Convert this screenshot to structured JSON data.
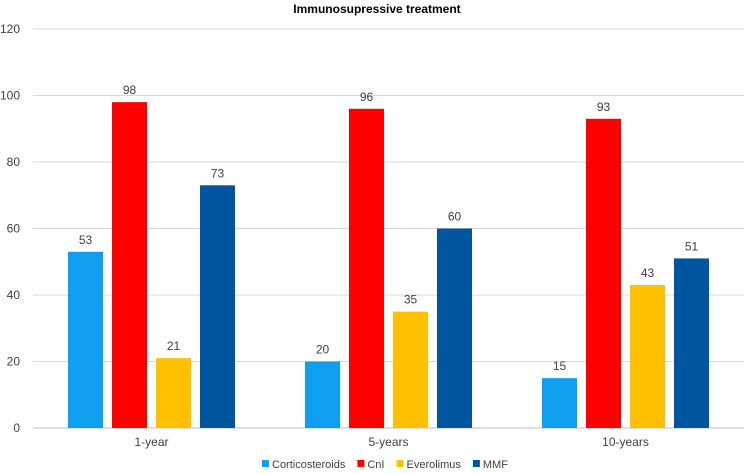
{
  "chart_data": {
    "type": "bar",
    "title": "Immunosupressive treatment",
    "xlabel": "",
    "ylabel": "",
    "categories": [
      "1-year",
      "5-years",
      "10-years"
    ],
    "series": [
      {
        "name": "Corticosteroids",
        "color": "#0e9ff0",
        "values": [
          53,
          20,
          15
        ]
      },
      {
        "name": "CnI",
        "color": "#ff0000",
        "values": [
          98,
          96,
          93
        ]
      },
      {
        "name": "Everolimus",
        "color": "#ffc000",
        "values": [
          21,
          35,
          43
        ]
      },
      {
        "name": "MMF",
        "color": "#0055a0",
        "values": [
          73,
          60,
          51
        ]
      }
    ],
    "ylim": [
      0,
      120
    ],
    "yticks": [
      "0",
      "20",
      "40",
      "60",
      "80",
      "100",
      "120"
    ],
    "grid": true,
    "legend_position": "bottom"
  }
}
